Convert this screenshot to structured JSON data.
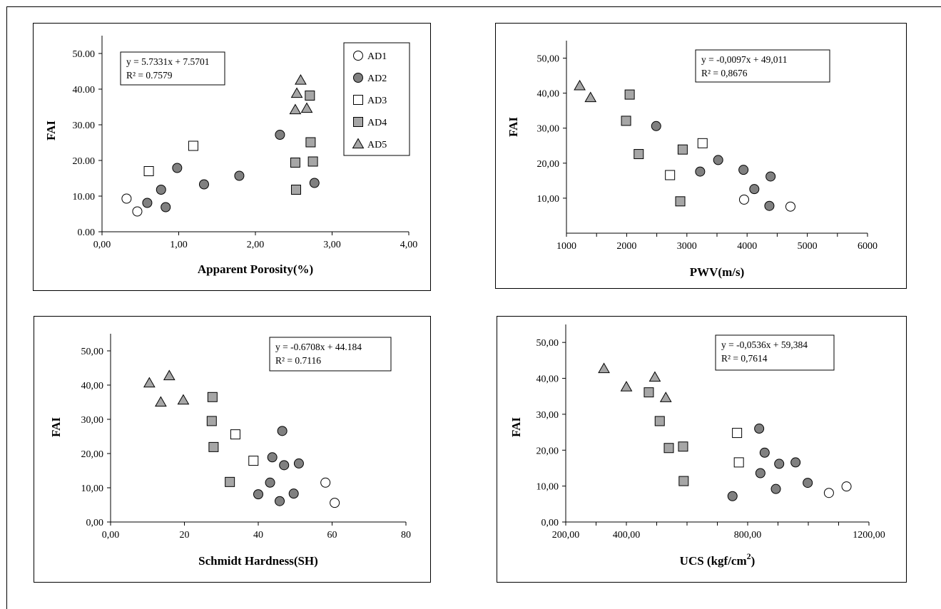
{
  "legend": [
    {
      "label": "AD1",
      "marker": "circle",
      "fill": "#ffffff"
    },
    {
      "label": "AD2",
      "marker": "circle",
      "fill": "#808080"
    },
    {
      "label": "AD3",
      "marker": "square",
      "fill": "#ffffff"
    },
    {
      "label": "AD4",
      "marker": "square",
      "fill": "#a6a6a6"
    },
    {
      "label": "AD5",
      "marker": "triangle",
      "fill": "#a6a6a6"
    }
  ],
  "chart_data": [
    {
      "type": "scatter",
      "xlabel": "Apparent Porosity(%)",
      "ylabel": "FAI",
      "xlim": [
        0,
        4
      ],
      "ylim": [
        0,
        55
      ],
      "xticks": [
        0,
        1,
        2,
        3,
        4
      ],
      "xtick_labels": [
        "0,00",
        "1,00",
        "2,00",
        "3,00",
        "4,00"
      ],
      "yticks": [
        0,
        10,
        20,
        30,
        40,
        50
      ],
      "ytick_labels": [
        "0.00",
        "10.00",
        "20.00",
        "30.00",
        "40.00",
        "50.00"
      ],
      "equation": "y = 5.7331x + 7.5701",
      "r2": "R² = 0.7579",
      "series": [
        {
          "name": "AD1",
          "points": [
            [
              0.32,
              9.3
            ],
            [
              0.46,
              5.7
            ]
          ]
        },
        {
          "name": "AD2",
          "points": [
            [
              0.59,
              8.1
            ],
            [
              0.77,
              11.8
            ],
            [
              0.83,
              6.9
            ],
            [
              0.98,
              17.9
            ],
            [
              1.33,
              13.3
            ],
            [
              1.79,
              15.7
            ],
            [
              2.32,
              27.2
            ],
            [
              2.77,
              13.7
            ]
          ]
        },
        {
          "name": "AD3",
          "points": [
            [
              0.61,
              17.0
            ],
            [
              1.19,
              24.1
            ]
          ]
        },
        {
          "name": "AD4",
          "points": [
            [
              2.52,
              19.4
            ],
            [
              2.53,
              11.8
            ],
            [
              2.71,
              38.2
            ],
            [
              2.72,
              25.1
            ],
            [
              2.75,
              19.7
            ]
          ]
        },
        {
          "name": "AD5",
          "points": [
            [
              2.52,
              34.2
            ],
            [
              2.54,
              38.8
            ],
            [
              2.59,
              42.5
            ],
            [
              2.67,
              34.6
            ]
          ]
        }
      ]
    },
    {
      "type": "scatter",
      "xlabel": "PWV(m/s)",
      "ylabel": "FAI",
      "xlim": [
        1000,
        6000
      ],
      "ylim": [
        0,
        55
      ],
      "xticks": [
        1000,
        2000,
        3000,
        4000,
        5000,
        6000
      ],
      "xtick_labels": [
        "1000",
        "2000",
        "3000",
        "4000",
        "5000",
        "6000"
      ],
      "yticks": [
        10,
        20,
        30,
        40,
        50
      ],
      "ytick_labels": [
        "10,00",
        "20,00",
        "30,00",
        "40,00",
        "50,00"
      ],
      "equation": "y = -0,0097x + 49,011",
      "r2": "R² = 0,8676",
      "series": [
        {
          "name": "AD1",
          "points": [
            [
              3950,
              9.6
            ],
            [
              4720,
              7.6
            ]
          ]
        },
        {
          "name": "AD2",
          "points": [
            [
              2490,
              30.6
            ],
            [
              3220,
              17.6
            ],
            [
              3520,
              20.9
            ],
            [
              3940,
              18.1
            ],
            [
              4120,
              12.6
            ],
            [
              4370,
              7.8
            ],
            [
              4390,
              16.2
            ]
          ]
        },
        {
          "name": "AD3",
          "points": [
            [
              2720,
              16.6
            ],
            [
              3260,
              25.7
            ]
          ]
        },
        {
          "name": "AD4",
          "points": [
            [
              1990,
              32.1
            ],
            [
              2050,
              39.6
            ],
            [
              2200,
              22.6
            ],
            [
              2890,
              9.1
            ],
            [
              2930,
              23.9
            ]
          ]
        },
        {
          "name": "AD5",
          "points": [
            [
              1220,
              42.1
            ],
            [
              1400,
              38.7
            ]
          ]
        }
      ]
    },
    {
      "type": "scatter",
      "xlabel": "Schmidt Hardness(SH)",
      "ylabel": "FAI",
      "xlim": [
        0,
        80
      ],
      "ylim": [
        0,
        55
      ],
      "xticks": [
        0,
        20,
        40,
        60,
        80
      ],
      "xtick_labels": [
        "0,00",
        "20",
        "40",
        "60",
        "80"
      ],
      "yticks": [
        0,
        10,
        20,
        30,
        40,
        50
      ],
      "ytick_labels": [
        "0,00",
        "10,00",
        "20,00",
        "30,00",
        "40,00",
        "50,00"
      ],
      "equation": "y = -0.6708x + 44.184",
      "r2": "R² = 0.7116",
      "series": [
        {
          "name": "AD1",
          "points": [
            [
              58.2,
              11.5
            ],
            [
              60.7,
              5.6
            ]
          ]
        },
        {
          "name": "AD2",
          "points": [
            [
              40.0,
              8.1
            ],
            [
              43.2,
              11.5
            ],
            [
              43.8,
              18.9
            ],
            [
              45.8,
              6.1
            ],
            [
              46.5,
              26.6
            ],
            [
              47.0,
              16.6
            ],
            [
              49.6,
              8.3
            ],
            [
              51.0,
              17.1
            ]
          ]
        },
        {
          "name": "AD3",
          "points": [
            [
              33.8,
              25.6
            ],
            [
              38.7,
              17.9
            ]
          ]
        },
        {
          "name": "AD4",
          "points": [
            [
              27.4,
              29.5
            ],
            [
              27.6,
              36.5
            ],
            [
              27.9,
              21.9
            ],
            [
              32.3,
              11.7
            ]
          ]
        },
        {
          "name": "AD5",
          "points": [
            [
              10.5,
              40.6
            ],
            [
              13.6,
              35.0
            ],
            [
              15.9,
              42.7
            ],
            [
              19.7,
              35.6
            ]
          ]
        }
      ]
    },
    {
      "type": "scatter",
      "xlabel": "UCS (kgf/cm",
      "xlabel_sup": "2",
      "xlabel_end": ")",
      "ylabel": "FAI",
      "xlim": [
        200,
        1200
      ],
      "ylim": [
        0,
        55
      ],
      "xticks": [
        200,
        400,
        600,
        800,
        1000,
        1200
      ],
      "xtick_labels": [
        "200,00",
        "400,00",
        "",
        "800,00",
        "",
        "1200,00"
      ],
      "yticks": [
        0,
        10,
        20,
        30,
        40,
        50
      ],
      "ytick_labels": [
        "0,00",
        "10,00",
        "20,00",
        "30,00",
        "40,00",
        "50,00"
      ],
      "equation": "y = -0,0536x + 59,384",
      "r2": "R² = 0,7614",
      "series": [
        {
          "name": "AD1",
          "points": [
            [
              1068,
              8.1
            ],
            [
              1126,
              9.9
            ]
          ]
        },
        {
          "name": "AD2",
          "points": [
            [
              750,
              7.2
            ],
            [
              838,
              26.0
            ],
            [
              842,
              13.6
            ],
            [
              856,
              19.3
            ],
            [
              893,
              9.2
            ],
            [
              904,
              16.2
            ],
            [
              958,
              16.6
            ],
            [
              998,
              10.9
            ]
          ]
        },
        {
          "name": "AD3",
          "points": [
            [
              765,
              24.8
            ],
            [
              771,
              16.6
            ]
          ]
        },
        {
          "name": "AD4",
          "points": [
            [
              474,
              36.1
            ],
            [
              510,
              28.1
            ],
            [
              540,
              20.6
            ],
            [
              587,
              21.0
            ],
            [
              589,
              11.4
            ]
          ]
        },
        {
          "name": "AD5",
          "points": [
            [
              326,
              42.7
            ],
            [
              400,
              37.6
            ],
            [
              494,
              40.3
            ],
            [
              530,
              34.6
            ]
          ]
        }
      ]
    }
  ]
}
